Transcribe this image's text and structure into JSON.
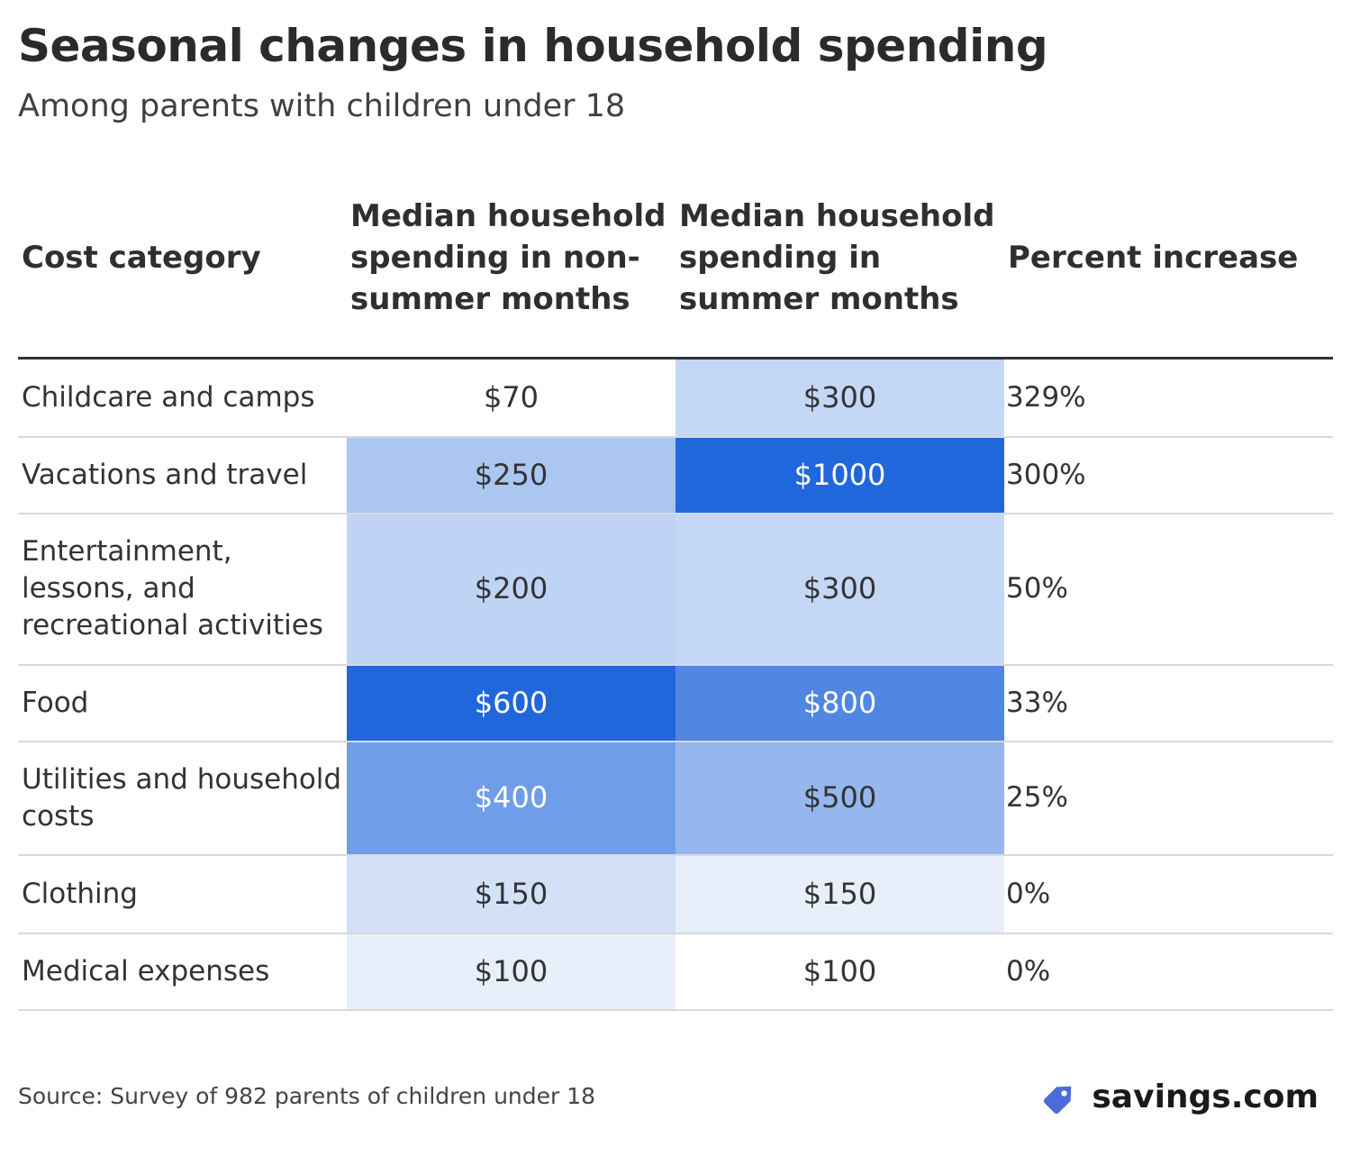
{
  "title": "Seasonal changes in household spending",
  "subtitle": "Among parents with children under 18",
  "source": "Source: Survey of 982 parents of children under 18",
  "brand": {
    "name": "savings.com",
    "icon": "price-tag-icon",
    "icon_color": "#4a6cd8"
  },
  "colors": {
    "scale_low": "#f3f7fd",
    "scale_high": "#2167dc",
    "text_dark": "#333333",
    "text_light": "#ffffff"
  },
  "chart_data": {
    "type": "table",
    "title": "Seasonal changes in household spending",
    "subtitle": "Among parents with children under 18",
    "columns": [
      "Cost category",
      "Median household spending in non-summer months",
      "Median household spending in summer months",
      "Percent increase"
    ],
    "rows": [
      {
        "category": "Childcare and camps",
        "non_summer": 70,
        "summer": 300,
        "non_summer_label": "$70",
        "summer_label": "$300",
        "percent_increase": "329%"
      },
      {
        "category": "Vacations and travel",
        "non_summer": 250,
        "summer": 1000,
        "non_summer_label": "$250",
        "summer_label": "$1000",
        "percent_increase": "300%"
      },
      {
        "category": "Entertainment, lessons, and recreational activities",
        "non_summer": 200,
        "summer": 300,
        "non_summer_label": "$200",
        "summer_label": "$300",
        "percent_increase": "50%"
      },
      {
        "category": "Food",
        "non_summer": 600,
        "summer": 800,
        "non_summer_label": "$600",
        "summer_label": "$800",
        "percent_increase": "33%"
      },
      {
        "category": "Utilities and household costs",
        "non_summer": 400,
        "summer": 500,
        "non_summer_label": "$400",
        "summer_label": "$500",
        "percent_increase": "25%"
      },
      {
        "category": "Clothing",
        "non_summer": 150,
        "summer": 150,
        "non_summer_label": "$150",
        "summer_label": "$150",
        "percent_increase": "0%"
      },
      {
        "category": "Medical expenses",
        "non_summer": 100,
        "summer": 100,
        "non_summer_label": "$100",
        "summer_label": "$100",
        "percent_increase": "0%"
      }
    ],
    "color_scale": {
      "non_summer_domain": [
        70,
        600
      ],
      "summer_domain": [
        100,
        1000
      ]
    }
  }
}
